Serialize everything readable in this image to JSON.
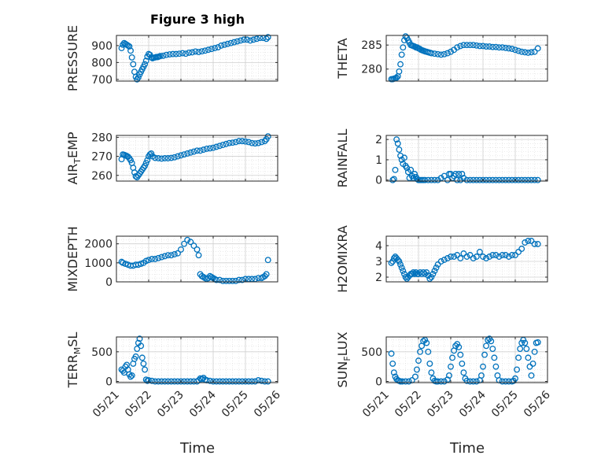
{
  "figure": {
    "title": "Figure 3 high",
    "xlabel": "Time",
    "marker_color": "#0072BD",
    "xticks": [
      "05/21",
      "05/22",
      "05/23",
      "05/24",
      "05/25",
      "05/26"
    ],
    "xlim": [
      0,
      5
    ]
  },
  "chart_data": [
    {
      "id": "pressure",
      "type": "scatter",
      "ylabel": "PRESSURE",
      "ylim": [
        690,
        960
      ],
      "yticks": [
        700,
        800,
        900
      ],
      "grid": true,
      "x": [
        0.16,
        0.2,
        0.24,
        0.28,
        0.32,
        0.36,
        0.4,
        0.44,
        0.48,
        0.52,
        0.56,
        0.6,
        0.64,
        0.68,
        0.72,
        0.76,
        0.8,
        0.84,
        0.88,
        0.92,
        0.96,
        1.0,
        1.04,
        1.08,
        1.12,
        1.16,
        1.2,
        1.24,
        1.28,
        1.32,
        1.36,
        1.45,
        1.55,
        1.65,
        1.75,
        1.85,
        1.95,
        2.05,
        2.15,
        2.25,
        2.35,
        2.45,
        2.55,
        2.65,
        2.75,
        2.85,
        2.95,
        3.05,
        3.15,
        3.25,
        3.35,
        3.45,
        3.55,
        3.65,
        3.75,
        3.85,
        3.95,
        4.05,
        4.15,
        4.25,
        4.35,
        4.45,
        4.55,
        4.65,
        4.7
      ],
      "y": [
        885,
        905,
        915,
        910,
        905,
        900,
        895,
        870,
        830,
        790,
        745,
        715,
        700,
        712,
        730,
        745,
        760,
        775,
        790,
        810,
        835,
        850,
        845,
        830,
        825,
        828,
        830,
        833,
        832,
        835,
        838,
        840,
        845,
        848,
        850,
        850,
        852,
        855,
        852,
        858,
        860,
        865,
        862,
        866,
        870,
        875,
        880,
        885,
        890,
        900,
        905,
        910,
        915,
        920,
        925,
        930,
        935,
        935,
        930,
        935,
        940,
        945,
        945,
        940,
        950
      ]
    },
    {
      "id": "theta",
      "type": "scatter",
      "ylabel": "THETA",
      "ylim": [
        277.5,
        287
      ],
      "yticks": [
        280,
        285
      ],
      "grid": true,
      "x": [
        0.16,
        0.2,
        0.24,
        0.28,
        0.32,
        0.36,
        0.4,
        0.44,
        0.48,
        0.52,
        0.56,
        0.6,
        0.64,
        0.68,
        0.72,
        0.76,
        0.8,
        0.84,
        0.88,
        0.92,
        0.96,
        1.0,
        1.04,
        1.08,
        1.12,
        1.16,
        1.2,
        1.25,
        1.3,
        1.35,
        1.4,
        1.5,
        1.6,
        1.7,
        1.8,
        1.9,
        2.0,
        2.1,
        2.2,
        2.3,
        2.4,
        2.5,
        2.6,
        2.7,
        2.8,
        2.9,
        3.0,
        3.1,
        3.2,
        3.3,
        3.4,
        3.5,
        3.6,
        3.7,
        3.8,
        3.9,
        4.0,
        4.1,
        4.2,
        4.3,
        4.4,
        4.5,
        4.6,
        4.7
      ],
      "y": [
        277.9,
        277.9,
        278.0,
        278.1,
        278.2,
        278.5,
        279.5,
        281.0,
        283.0,
        284.5,
        286.0,
        286.8,
        286.5,
        286.0,
        285.5,
        285.0,
        284.9,
        284.8,
        284.7,
        284.5,
        284.5,
        284.3,
        284.2,
        284.0,
        283.9,
        283.8,
        283.7,
        283.6,
        283.5,
        283.4,
        283.3,
        283.2,
        283.1,
        283.0,
        283.1,
        283.3,
        283.6,
        284.0,
        284.5,
        284.8,
        285.0,
        285.0,
        285.0,
        285.0,
        284.9,
        284.8,
        284.8,
        284.7,
        284.7,
        284.6,
        284.6,
        284.5,
        284.5,
        284.4,
        284.3,
        284.2,
        284.0,
        283.8,
        283.6,
        283.5,
        283.4,
        283.5,
        283.6,
        284.3
      ]
    },
    {
      "id": "air_temp",
      "type": "scatter",
      "ylabel": "AIR_TEMP",
      "ylim": [
        257,
        281
      ],
      "yticks": [
        260,
        270,
        280
      ],
      "grid": true,
      "x": [
        0.16,
        0.2,
        0.24,
        0.28,
        0.32,
        0.36,
        0.4,
        0.44,
        0.48,
        0.52,
        0.56,
        0.6,
        0.64,
        0.68,
        0.72,
        0.76,
        0.8,
        0.84,
        0.88,
        0.92,
        0.96,
        1.0,
        1.04,
        1.08,
        1.12,
        1.2,
        1.3,
        1.4,
        1.5,
        1.6,
        1.7,
        1.8,
        1.9,
        2.0,
        2.1,
        2.2,
        2.3,
        2.4,
        2.5,
        2.6,
        2.7,
        2.8,
        2.9,
        3.0,
        3.1,
        3.2,
        3.3,
        3.4,
        3.5,
        3.6,
        3.7,
        3.8,
        3.9,
        4.0,
        4.1,
        4.2,
        4.3,
        4.4,
        4.5,
        4.6,
        4.65,
        4.7
      ],
      "y": [
        268.5,
        271.0,
        270.8,
        270.5,
        270.2,
        269.8,
        269.0,
        268.0,
        266.5,
        264.0,
        261.5,
        259.5,
        259.0,
        260.0,
        261.0,
        262.0,
        263.0,
        264.0,
        265.0,
        266.5,
        268.0,
        270.0,
        271.0,
        271.5,
        270.0,
        269.2,
        269.0,
        268.8,
        269.0,
        269.0,
        269.2,
        269.5,
        270.0,
        270.5,
        271.0,
        271.5,
        272.0,
        272.5,
        273.0,
        273.0,
        273.5,
        274.0,
        274.2,
        274.5,
        275.0,
        275.5,
        276.0,
        276.5,
        277.0,
        277.2,
        277.5,
        278.0,
        278.0,
        277.8,
        277.5,
        277.0,
        276.8,
        277.0,
        277.5,
        278.0,
        279.0,
        280.5
      ]
    },
    {
      "id": "rainfall",
      "type": "scatter",
      "ylabel": "RAINFALL",
      "ylim": [
        -0.05,
        2.2
      ],
      "yticks": [
        0,
        1,
        2
      ],
      "grid": true,
      "x": [
        0.2,
        0.24,
        0.28,
        0.32,
        0.36,
        0.4,
        0.44,
        0.48,
        0.52,
        0.56,
        0.6,
        0.64,
        0.68,
        0.72,
        0.76,
        0.8,
        0.84,
        0.88,
        0.92,
        0.96,
        1.0,
        1.05,
        1.1,
        1.15,
        1.2,
        1.3,
        1.4,
        1.5,
        1.6,
        1.7,
        1.8,
        1.9,
        1.95,
        2.0,
        2.05,
        2.1,
        2.15,
        2.2,
        2.25,
        2.3,
        2.35,
        2.4,
        2.5,
        2.6,
        2.7,
        2.8,
        2.9,
        3.0,
        3.1,
        3.2,
        3.3,
        3.4,
        3.5,
        3.6,
        3.7,
        3.8,
        3.9,
        4.0,
        4.1,
        4.2,
        4.3,
        4.4,
        4.5,
        4.6,
        4.7
      ],
      "y": [
        0,
        0.05,
        0.5,
        2.0,
        1.8,
        1.5,
        1.2,
        1.0,
        0.8,
        1.1,
        0.7,
        0.6,
        0.4,
        0.1,
        0.5,
        0.2,
        0.1,
        0.3,
        0.15,
        0.05,
        0.0,
        0.0,
        0.0,
        0.0,
        0.0,
        0.0,
        0.0,
        0.0,
        0.0,
        0.1,
        0.2,
        0.0,
        0.3,
        0.3,
        0.1,
        0.2,
        0.3,
        0.0,
        0.3,
        0.0,
        0.3,
        0.1,
        0.0,
        0.0,
        0.0,
        0.0,
        0.0,
        0.0,
        0.0,
        0.0,
        0.0,
        0.0,
        0.0,
        0.0,
        0.0,
        0.0,
        0.0,
        0.0,
        0.0,
        0.0,
        0.0,
        0.0,
        0.0,
        0.0,
        0.0
      ]
    },
    {
      "id": "mixdepth",
      "type": "scatter",
      "ylabel": "MIXDEPTH",
      "ylim": [
        0,
        2400
      ],
      "yticks": [
        0,
        1000,
        2000
      ],
      "grid": true,
      "x": [
        0.16,
        0.2,
        0.28,
        0.36,
        0.44,
        0.52,
        0.6,
        0.68,
        0.76,
        0.84,
        0.92,
        1.0,
        1.1,
        1.2,
        1.3,
        1.4,
        1.5,
        1.6,
        1.7,
        1.8,
        1.9,
        2.0,
        2.1,
        2.2,
        2.3,
        2.4,
        2.5,
        2.55,
        2.6,
        2.65,
        2.7,
        2.75,
        2.8,
        2.85,
        2.9,
        2.95,
        3.0,
        3.05,
        3.1,
        3.2,
        3.3,
        3.4,
        3.5,
        3.6,
        3.7,
        3.8,
        3.9,
        4.0,
        4.1,
        4.2,
        4.3,
        4.4,
        4.5,
        4.55,
        4.6,
        4.65,
        4.7
      ],
      "y": [
        1050,
        1000,
        950,
        900,
        850,
        850,
        900,
        900,
        950,
        1000,
        1100,
        1150,
        1200,
        1200,
        1250,
        1300,
        1350,
        1400,
        1400,
        1450,
        1500,
        1700,
        2000,
        2200,
        2100,
        1900,
        1700,
        1400,
        400,
        300,
        250,
        200,
        150,
        200,
        300,
        250,
        200,
        150,
        100,
        100,
        50,
        50,
        50,
        50,
        50,
        100,
        100,
        150,
        150,
        150,
        150,
        200,
        200,
        250,
        300,
        400,
        1150
      ]
    },
    {
      "id": "h2omixra",
      "type": "scatter",
      "ylabel": "H2OMIXRA",
      "ylim": [
        1.7,
        4.6
      ],
      "yticks": [
        2,
        3,
        4
      ],
      "grid": true,
      "x": [
        0.16,
        0.2,
        0.24,
        0.28,
        0.32,
        0.36,
        0.4,
        0.44,
        0.48,
        0.52,
        0.56,
        0.6,
        0.64,
        0.68,
        0.72,
        0.76,
        0.8,
        0.84,
        0.88,
        0.92,
        0.96,
        1.0,
        1.05,
        1.1,
        1.15,
        1.2,
        1.25,
        1.3,
        1.35,
        1.4,
        1.45,
        1.5,
        1.55,
        1.6,
        1.7,
        1.8,
        1.9,
        2.0,
        2.1,
        2.2,
        2.3,
        2.4,
        2.5,
        2.6,
        2.7,
        2.8,
        2.9,
        3.0,
        3.1,
        3.2,
        3.3,
        3.4,
        3.5,
        3.6,
        3.7,
        3.8,
        3.9,
        4.0,
        4.1,
        4.2,
        4.3,
        4.4,
        4.5,
        4.6,
        4.7
      ],
      "y": [
        2.9,
        3.0,
        3.2,
        3.3,
        3.2,
        3.1,
        3.0,
        2.8,
        2.6,
        2.4,
        2.2,
        2.0,
        1.9,
        2.0,
        2.1,
        2.2,
        2.2,
        2.3,
        2.2,
        2.3,
        2.2,
        2.2,
        2.3,
        2.2,
        2.3,
        2.2,
        2.3,
        2.1,
        1.9,
        2.0,
        2.2,
        2.4,
        2.6,
        2.8,
        3.0,
        3.1,
        3.2,
        3.3,
        3.3,
        3.4,
        3.2,
        3.5,
        3.3,
        3.4,
        3.2,
        3.3,
        3.6,
        3.3,
        3.2,
        3.3,
        3.4,
        3.4,
        3.3,
        3.4,
        3.4,
        3.3,
        3.4,
        3.4,
        3.6,
        3.8,
        4.2,
        4.3,
        4.3,
        4.1,
        4.1
      ]
    },
    {
      "id": "terr_msl",
      "type": "scatter",
      "ylabel": "TERR_MSL",
      "ylim": [
        -20,
        750
      ],
      "yticks": [
        0,
        500
      ],
      "grid": true,
      "x": [
        0.16,
        0.2,
        0.24,
        0.28,
        0.32,
        0.36,
        0.4,
        0.44,
        0.48,
        0.52,
        0.56,
        0.6,
        0.64,
        0.68,
        0.72,
        0.76,
        0.8,
        0.84,
        0.88,
        0.92,
        0.96,
        1.0,
        1.1,
        1.2,
        1.3,
        1.4,
        1.5,
        1.6,
        1.7,
        1.8,
        1.9,
        2.0,
        2.1,
        2.2,
        2.3,
        2.4,
        2.5,
        2.55,
        2.6,
        2.65,
        2.7,
        2.75,
        2.8,
        2.9,
        3.0,
        3.1,
        3.2,
        3.3,
        3.4,
        3.5,
        3.6,
        3.7,
        3.8,
        3.9,
        4.0,
        4.1,
        4.2,
        4.3,
        4.4,
        4.5,
        4.6,
        4.7
      ],
      "y": [
        200,
        180,
        150,
        250,
        280,
        200,
        120,
        80,
        100,
        300,
        380,
        420,
        550,
        650,
        720,
        600,
        400,
        300,
        200,
        30,
        10,
        20,
        10,
        0,
        0,
        0,
        0,
        0,
        0,
        0,
        0,
        0,
        0,
        0,
        0,
        0,
        0,
        20,
        50,
        40,
        60,
        30,
        20,
        10,
        0,
        0,
        0,
        0,
        0,
        0,
        0,
        0,
        0,
        0,
        0,
        0,
        0,
        0,
        20,
        10,
        0,
        0
      ]
    },
    {
      "id": "sun_flux",
      "type": "scatter",
      "ylabel": "SUN_FLUX",
      "ylim": [
        -20,
        750
      ],
      "yticks": [
        0,
        500
      ],
      "grid": true,
      "x": [
        0.16,
        0.2,
        0.24,
        0.28,
        0.32,
        0.36,
        0.4,
        0.44,
        0.5,
        0.6,
        0.7,
        0.8,
        0.9,
        0.95,
        1.0,
        1.05,
        1.1,
        1.15,
        1.2,
        1.25,
        1.3,
        1.35,
        1.4,
        1.45,
        1.5,
        1.55,
        1.6,
        1.7,
        1.8,
        1.9,
        1.95,
        2.0,
        2.05,
        2.1,
        2.15,
        2.2,
        2.25,
        2.3,
        2.35,
        2.4,
        2.45,
        2.5,
        2.6,
        2.7,
        2.8,
        2.9,
        2.95,
        3.0,
        3.05,
        3.1,
        3.15,
        3.2,
        3.25,
        3.3,
        3.35,
        3.4,
        3.45,
        3.5,
        3.6,
        3.7,
        3.8,
        3.9,
        3.95,
        4.0,
        4.05,
        4.1,
        4.15,
        4.2,
        4.25,
        4.3,
        4.35,
        4.4,
        4.45,
        4.5,
        4.55,
        4.6,
        4.65,
        4.7
      ],
      "y": [
        470,
        300,
        150,
        80,
        40,
        20,
        10,
        0,
        0,
        0,
        0,
        20,
        80,
        200,
        350,
        500,
        600,
        680,
        700,
        650,
        500,
        300,
        150,
        50,
        10,
        0,
        0,
        0,
        0,
        30,
        100,
        250,
        400,
        520,
        600,
        630,
        580,
        450,
        300,
        150,
        50,
        10,
        0,
        0,
        0,
        20,
        100,
        250,
        450,
        600,
        700,
        720,
        680,
        550,
        400,
        250,
        100,
        20,
        0,
        0,
        0,
        0,
        10,
        50,
        200,
        400,
        550,
        650,
        700,
        650,
        550,
        400,
        250,
        100,
        300,
        500,
        650,
        660
      ]
    }
  ]
}
